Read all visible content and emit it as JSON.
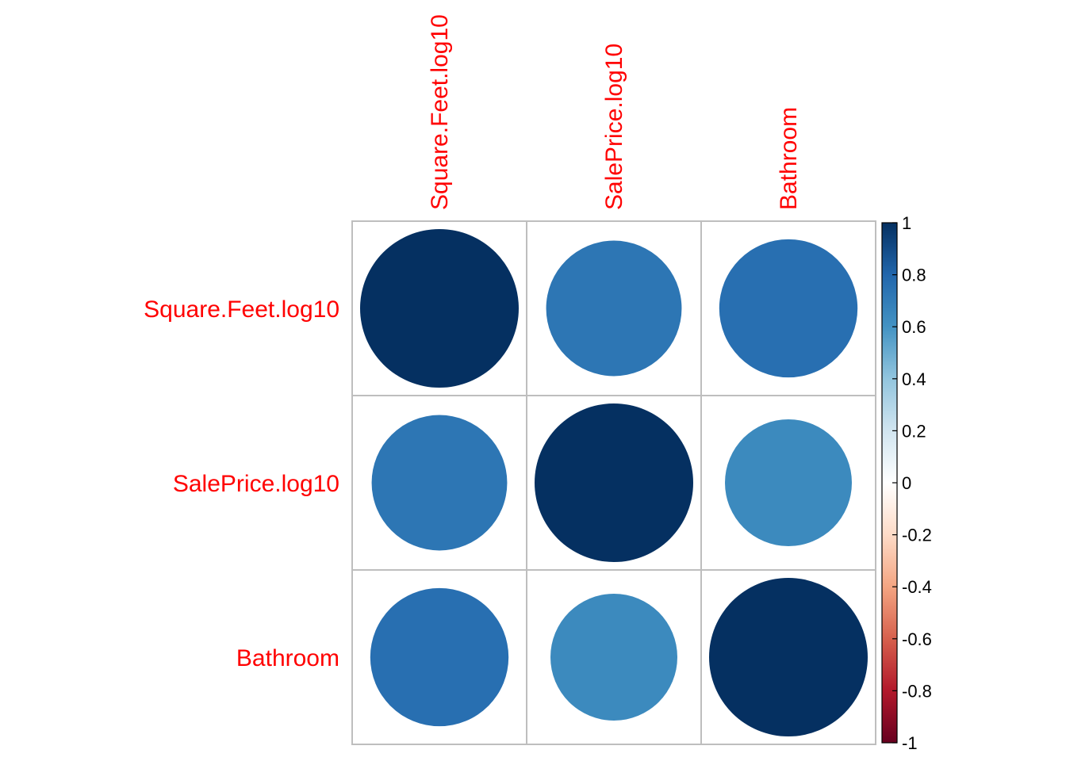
{
  "chart_data": {
    "type": "heatmap",
    "style": "corrplot-circles",
    "variables": [
      "Square.Feet.log10",
      "SalePrice.log10",
      "Bathroom"
    ],
    "matrix": [
      [
        1.0,
        0.73,
        0.76
      ],
      [
        0.73,
        1.0,
        0.64
      ],
      [
        0.76,
        0.64,
        1.0
      ]
    ],
    "colorbar": {
      "range": [
        -1,
        1
      ],
      "ticks": [
        1,
        0.8,
        0.6,
        0.4,
        0.2,
        0,
        -0.2,
        -0.4,
        -0.6,
        -0.8,
        -1
      ],
      "tick_labels": [
        "1",
        "0.8",
        "0.6",
        "0.4",
        "0.2",
        "0",
        "-0.2",
        "-0.4",
        "-0.6",
        "-0.8",
        "-1"
      ],
      "palette": [
        "#67001F",
        "#B2182B",
        "#D6604D",
        "#F4A582",
        "#FDDBC7",
        "#FFFFFF",
        "#D1E5F0",
        "#92C5DE",
        "#4393C3",
        "#2166AC",
        "#053061"
      ]
    },
    "label_color": "#FF0000",
    "grid_color": "#BEBEBE"
  }
}
